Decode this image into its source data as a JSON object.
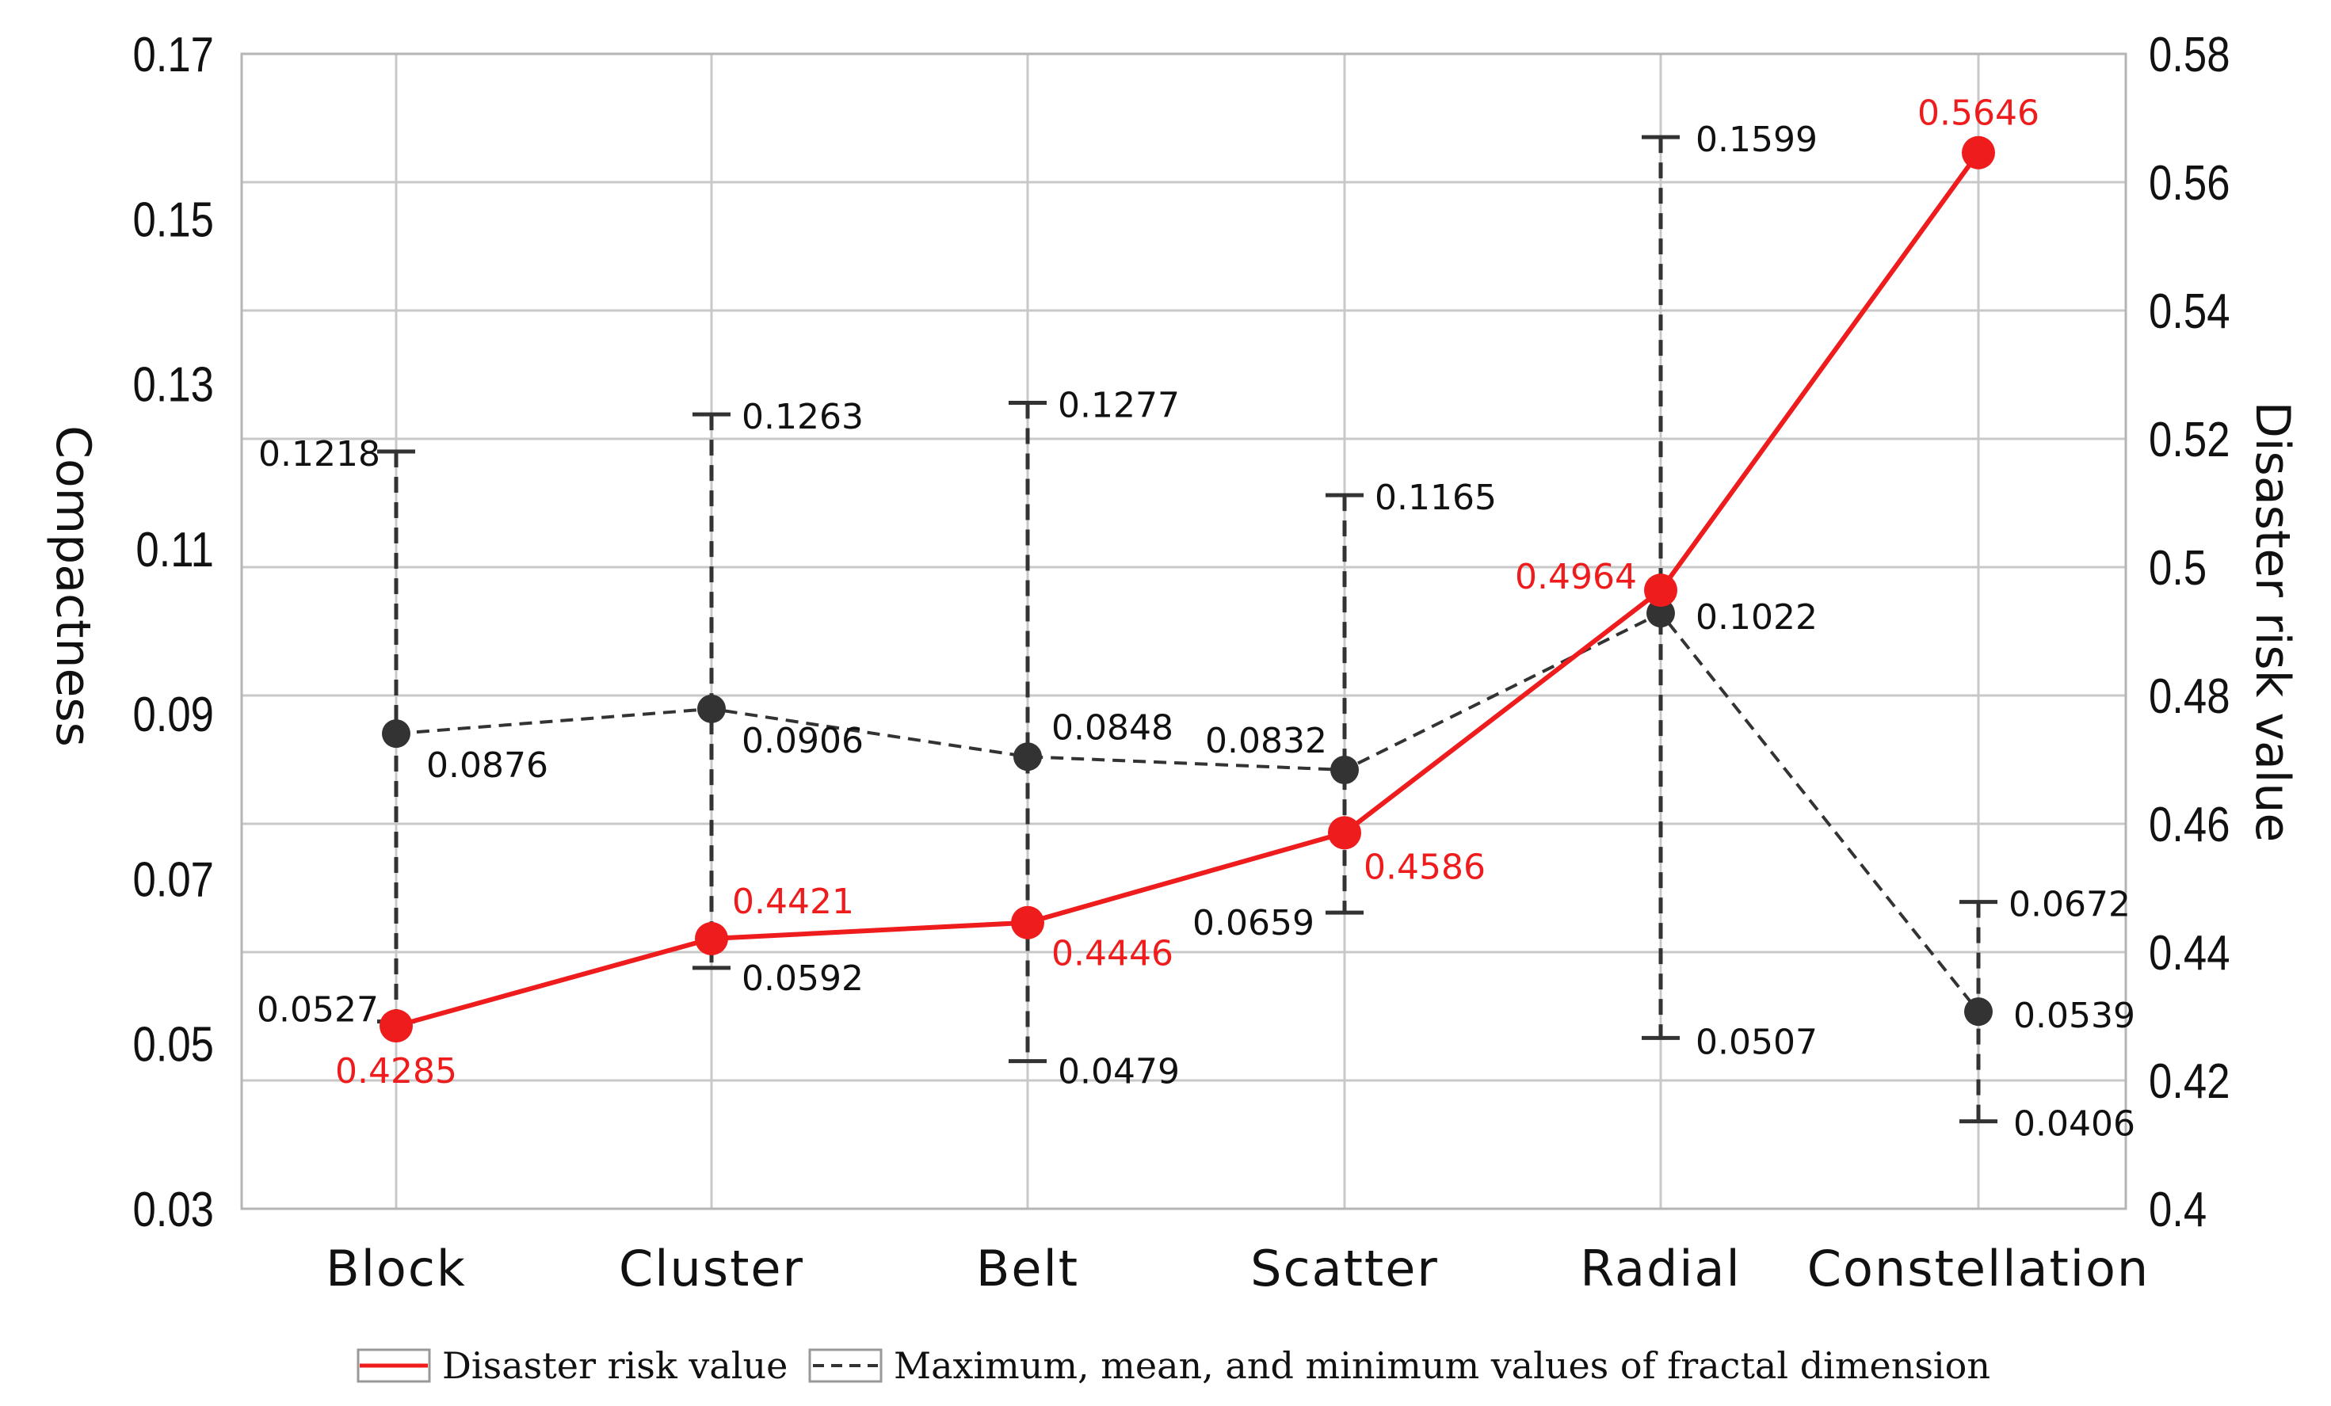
{
  "chart_data": {
    "type": "line",
    "categories": [
      "Block",
      "Cluster",
      "Belt",
      "Scatter",
      "Radial",
      "Constellation"
    ],
    "left_axis": {
      "label": "Compactness",
      "range": [
        0.03,
        0.17
      ],
      "ticks": [
        "0.03",
        "0.05",
        "0.07",
        "0.09",
        "0.11",
        "0.13",
        "0.15",
        "0.17"
      ]
    },
    "right_axis": {
      "label": "Disaster risk value",
      "range": [
        0.4,
        0.58
      ],
      "ticks": [
        "0.4",
        "0.42",
        "0.44",
        "0.46",
        "0.48",
        "0.5",
        "0.52",
        "0.54",
        "0.56",
        "0.58"
      ]
    },
    "grid": true,
    "series": [
      {
        "name": "Disaster risk value",
        "axis": "right",
        "color": "#ee1c1c",
        "values": [
          0.4285,
          0.4421,
          0.4446,
          0.4586,
          0.4964,
          0.5646
        ],
        "labels": [
          "0.4285",
          "0.4421",
          "0.4446",
          "0.4586",
          "0.4964",
          "0.5646"
        ]
      },
      {
        "name": "Maximum, mean, and minimum values of fractal dimension",
        "axis": "left",
        "color": "#333333",
        "mean": [
          0.0876,
          0.0906,
          0.0848,
          0.0832,
          0.1022,
          0.0539
        ],
        "max": [
          0.1218,
          0.1263,
          0.1277,
          0.1165,
          0.1599,
          0.0672
        ],
        "min": [
          0.0527,
          0.0592,
          0.0479,
          0.0659,
          0.0507,
          0.0406
        ],
        "mean_labels": [
          "0.0876",
          "0.0906",
          "0.0848",
          "0.0832",
          "0.1022",
          "0.0539"
        ],
        "max_labels": [
          "0.1218",
          "0.1263",
          "0.1277",
          "0.1165",
          "0.1599",
          "0.0672"
        ],
        "min_labels": [
          "0.0527",
          "0.0592",
          "0.0479",
          "0.0659",
          "0.0507",
          "0.0406"
        ]
      }
    ],
    "legend": {
      "position": "bottom-center",
      "items": [
        "Disaster risk value",
        "Maximum, mean, and minimum values of fractal dimension"
      ]
    }
  }
}
